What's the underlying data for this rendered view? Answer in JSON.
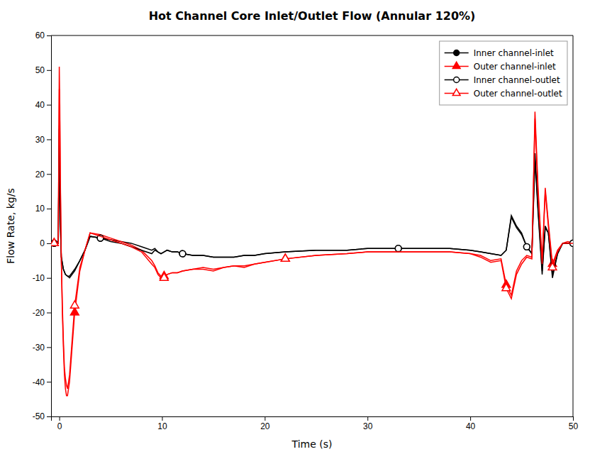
{
  "chart_data": {
    "type": "line",
    "title": "Hot Channel Core Inlet/Outlet Flow (Annular 120%)",
    "xlabel": "Time (s)",
    "ylabel": "Flow Rate, kg/s",
    "xlim": [
      -0.8,
      50
    ],
    "ylim": [
      -50,
      60
    ],
    "xticks": [
      0,
      10,
      20,
      30,
      40,
      50
    ],
    "yticks": [
      -50,
      -40,
      -30,
      -20,
      -10,
      0,
      10,
      20,
      30,
      40,
      50,
      60
    ],
    "grid": false,
    "legend": "upper right",
    "series": [
      {
        "name": "Inner channel-inlet",
        "color": "#000000",
        "marker": "circle",
        "line_style": "solid",
        "x": [
          -0.5,
          -0.1,
          0.0,
          0.05,
          0.1,
          0.2,
          0.4,
          0.6,
          0.8,
          1.0,
          1.5,
          2.0,
          2.5,
          3.0,
          4.0,
          5.0,
          6.0,
          7.0,
          8.0,
          9.0,
          9.3,
          9.6,
          9.9,
          10.2,
          10.5,
          11.0,
          11.5,
          12.0,
          13.0,
          14.0,
          15.0,
          16.0,
          17.0,
          18.0,
          19.0,
          20.0,
          22.0,
          25.0,
          28.0,
          30.0,
          33.0,
          35.0,
          38.0,
          40.0,
          41.0,
          42.0,
          43.0,
          43.5,
          44.0,
          44.5,
          45.0,
          45.5,
          46.0,
          46.3,
          46.6,
          47.0,
          47.3,
          47.6,
          48.0,
          48.5,
          49.0,
          49.5,
          50.0
        ],
        "values": [
          0.0,
          0.0,
          34.0,
          15.0,
          6.0,
          -4.0,
          -7.5,
          -9.0,
          -9.5,
          -10.0,
          -8.0,
          -5.0,
          -2.0,
          2.0,
          1.5,
          1.0,
          0.5,
          0.0,
          -1.0,
          -2.0,
          -1.5,
          -2.5,
          -3.0,
          -2.5,
          -2.0,
          -2.5,
          -2.5,
          -3.0,
          -3.5,
          -3.5,
          -4.0,
          -4.0,
          -4.0,
          -3.5,
          -3.5,
          -3.0,
          -2.5,
          -2.0,
          -2.0,
          -1.5,
          -1.5,
          -1.5,
          -1.5,
          -2.0,
          -2.5,
          -3.0,
          -3.5,
          -2.0,
          8.0,
          5.0,
          3.0,
          -1.0,
          -3.0,
          26.0,
          10.0,
          -8.0,
          5.0,
          3.0,
          -9.0,
          -3.0,
          0.0,
          0.0,
          0.0
        ]
      },
      {
        "name": "Outer channel-inlet",
        "color": "#ff0000",
        "marker": "triangle",
        "line_style": "solid",
        "x": [
          -0.5,
          -0.1,
          0.0,
          0.05,
          0.1,
          0.2,
          0.3,
          0.4,
          0.5,
          0.6,
          0.7,
          0.8,
          1.0,
          1.2,
          1.5,
          2.0,
          2.5,
          3.0,
          4.0,
          5.0,
          6.0,
          7.0,
          8.0,
          9.0,
          9.3,
          9.6,
          9.9,
          10.2,
          10.5,
          11.0,
          11.5,
          12.0,
          13.0,
          14.0,
          15.0,
          16.0,
          17.0,
          18.0,
          19.0,
          20.0,
          22.0,
          25.0,
          28.0,
          30.0,
          33.0,
          35.0,
          38.0,
          40.0,
          41.0,
          42.0,
          43.0,
          43.5,
          44.0,
          44.5,
          45.0,
          45.5,
          46.0,
          46.3,
          46.6,
          47.0,
          47.3,
          47.6,
          48.0,
          48.5,
          49.0,
          49.5,
          50.0
        ],
        "values": [
          0.0,
          0.0,
          51.0,
          40.0,
          20.0,
          -5.0,
          -20.0,
          -30.0,
          -38.0,
          -42.0,
          -44.0,
          -44.0,
          -40.0,
          -32.0,
          -20.0,
          -8.0,
          -2.0,
          3.0,
          2.5,
          1.5,
          0.5,
          -0.5,
          -2.0,
          -5.0,
          -6.5,
          -8.5,
          -9.5,
          -9.5,
          -9.0,
          -8.5,
          -8.5,
          -8.0,
          -7.5,
          -7.0,
          -7.5,
          -7.0,
          -6.5,
          -6.5,
          -6.0,
          -5.5,
          -4.5,
          -3.5,
          -3.0,
          -2.5,
          -2.5,
          -2.5,
          -2.5,
          -3.0,
          -3.5,
          -5.0,
          -4.5,
          -12.0,
          -15.0,
          -8.0,
          -5.0,
          -3.5,
          -4.0,
          38.0,
          16.0,
          -5.0,
          16.0,
          6.0,
          -6.0,
          -2.0,
          0.0,
          0.5,
          0.0
        ]
      },
      {
        "name": "Inner channel-outlet",
        "color": "#000000",
        "marker": "circle-open",
        "line_style": "solid",
        "x": [
          -0.5,
          -0.1,
          0.0,
          0.05,
          0.1,
          0.2,
          0.4,
          0.6,
          0.8,
          1.0,
          1.5,
          2.0,
          2.5,
          3.0,
          4.0,
          5.0,
          6.0,
          7.0,
          8.0,
          9.0,
          9.3,
          9.6,
          9.9,
          10.2,
          10.5,
          11.0,
          11.5,
          12.0,
          13.0,
          14.0,
          15.0,
          16.0,
          17.0,
          18.0,
          19.0,
          20.0,
          22.0,
          25.0,
          28.0,
          30.0,
          33.0,
          35.0,
          38.0,
          40.0,
          41.0,
          42.0,
          43.0,
          43.5,
          44.0,
          44.5,
          45.0,
          45.5,
          46.0,
          46.3,
          46.6,
          47.0,
          47.3,
          47.6,
          48.0,
          48.5,
          49.0,
          49.5,
          50.0
        ],
        "values": [
          0.0,
          0.0,
          33.0,
          14.0,
          5.0,
          -4.0,
          -7.5,
          -9.0,
          -9.5,
          -9.5,
          -7.5,
          -5.0,
          -2.0,
          2.0,
          1.5,
          0.5,
          0.0,
          -1.0,
          -2.0,
          -3.0,
          -2.0,
          -2.5,
          -3.0,
          -2.5,
          -2.0,
          -2.5,
          -2.5,
          -3.0,
          -3.5,
          -3.5,
          -4.0,
          -4.0,
          -4.0,
          -3.5,
          -3.5,
          -3.0,
          -2.5,
          -2.0,
          -2.0,
          -1.5,
          -1.5,
          -1.5,
          -1.5,
          -2.0,
          -2.5,
          -3.0,
          -3.5,
          -2.0,
          7.5,
          4.5,
          2.5,
          -1.0,
          -3.0,
          24.0,
          9.0,
          -9.0,
          4.5,
          3.0,
          -10.0,
          -3.0,
          0.0,
          0.0,
          0.0
        ]
      },
      {
        "name": "Outer channel-outlet",
        "color": "#ff0000",
        "marker": "triangle-open",
        "line_style": "solid",
        "x": [
          -0.5,
          -0.1,
          0.0,
          0.05,
          0.1,
          0.2,
          0.3,
          0.4,
          0.5,
          0.6,
          0.7,
          0.8,
          1.0,
          1.2,
          1.5,
          2.0,
          2.5,
          3.0,
          4.0,
          5.0,
          6.0,
          7.0,
          8.0,
          9.0,
          9.3,
          9.6,
          9.9,
          10.2,
          10.5,
          11.0,
          11.5,
          12.0,
          13.0,
          14.0,
          15.0,
          16.0,
          17.0,
          18.0,
          19.0,
          20.0,
          22.0,
          25.0,
          28.0,
          30.0,
          33.0,
          35.0,
          38.0,
          40.0,
          41.0,
          42.0,
          43.0,
          43.5,
          44.0,
          44.5,
          45.0,
          45.5,
          46.0,
          46.3,
          46.6,
          47.0,
          47.3,
          47.6,
          48.0,
          48.5,
          49.0,
          49.5,
          50.0
        ],
        "values": [
          0.0,
          0.0,
          44.5,
          35.0,
          18.0,
          -5.0,
          -18.0,
          -28.0,
          -36.0,
          -39.0,
          -41.0,
          -42.0,
          -38.0,
          -30.0,
          -18.0,
          -7.0,
          -2.0,
          3.0,
          2.0,
          1.0,
          0.0,
          -1.0,
          -2.5,
          -6.0,
          -7.0,
          -9.0,
          -10.0,
          -10.0,
          -9.0,
          -8.5,
          -8.5,
          -8.0,
          -7.5,
          -7.5,
          -8.0,
          -7.0,
          -6.5,
          -7.0,
          -6.0,
          -5.5,
          -4.5,
          -3.5,
          -3.0,
          -2.5,
          -2.5,
          -2.5,
          -2.5,
          -3.0,
          -4.0,
          -5.5,
          -5.0,
          -13.0,
          -16.0,
          -9.0,
          -6.0,
          -4.0,
          -4.5,
          36.0,
          14.0,
          -6.0,
          15.0,
          5.0,
          -7.0,
          -2.5,
          0.0,
          0.0,
          0.0
        ]
      }
    ]
  }
}
